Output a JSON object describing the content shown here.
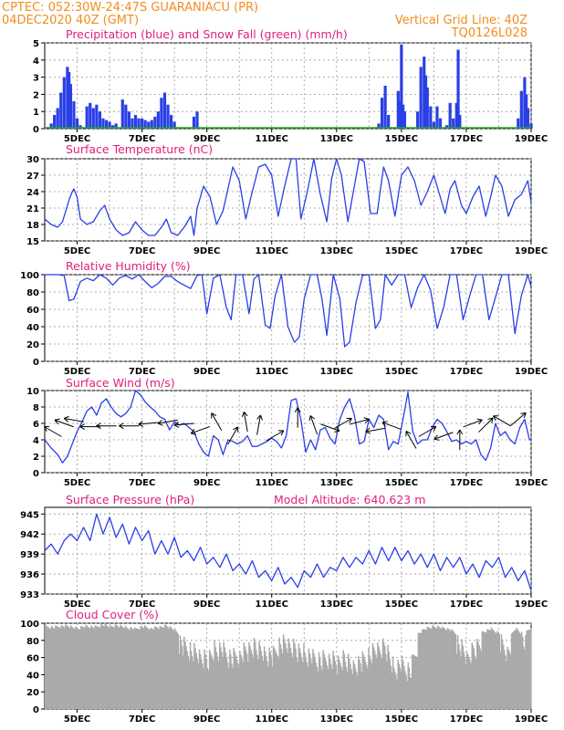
{
  "header": {
    "left_line1": "CPTEC:   052:30W-24:47S   GUARANIACU (PR)",
    "left_line2": "04DEC2020 40Z (GMT)",
    "right_line1": "Vertical Grid Line: 40Z",
    "right_line2": "TQ0126L028"
  },
  "colors": {
    "header": "#f28c1e",
    "panel_title": "#e0207a",
    "line": "#2a3fe6",
    "snow": "#22aa22",
    "cloud": "#aaaaaa"
  },
  "x_labels": [
    "5DEC",
    "7DEC",
    "9DEC",
    "11DEC",
    "13DEC",
    "15DEC",
    "17DEC",
    "19DEC"
  ],
  "chart_data": [
    {
      "type": "bar",
      "title": "Precipitation (blue) and Snow Fall (green) (mm/h)",
      "x_range_days": [
        4.0,
        19.0
      ],
      "ylim": [
        0,
        5
      ],
      "yticks": [
        0,
        1,
        2,
        3,
        4,
        5
      ],
      "series": [
        {
          "name": "Precipitation",
          "x": [
            4.2,
            4.3,
            4.4,
            4.5,
            4.6,
            4.7,
            4.75,
            4.8,
            4.9,
            5.0,
            5.1,
            5.3,
            5.4,
            5.5,
            5.6,
            5.7,
            5.8,
            5.9,
            6.0,
            6.1,
            6.2,
            6.4,
            6.5,
            6.6,
            6.7,
            6.8,
            6.9,
            7.0,
            7.1,
            7.2,
            7.3,
            7.4,
            7.5,
            7.6,
            7.7,
            7.8,
            7.9,
            8.0,
            8.6,
            8.7,
            14.3,
            14.4,
            14.5,
            14.6,
            14.9,
            14.95,
            15.0,
            15.05,
            15.1,
            15.5,
            15.6,
            15.7,
            15.75,
            15.8,
            15.9,
            16.0,
            16.1,
            16.2,
            16.4,
            16.5,
            16.6,
            16.7,
            16.75,
            16.8,
            18.6,
            18.7,
            18.8,
            18.85,
            18.9,
            19.0
          ],
          "values": [
            0.3,
            0.8,
            1.2,
            2.1,
            3.0,
            3.6,
            3.3,
            2.6,
            1.6,
            0.6,
            0.2,
            1.3,
            1.5,
            1.2,
            1.4,
            1.0,
            0.6,
            0.5,
            0.4,
            0.2,
            0.3,
            1.7,
            1.4,
            1.0,
            0.6,
            0.8,
            0.6,
            0.6,
            0.5,
            0.4,
            0.5,
            0.7,
            1.0,
            1.8,
            2.1,
            1.4,
            0.8,
            0.4,
            0.7,
            1.0,
            0.3,
            1.8,
            2.5,
            0.8,
            2.2,
            1.6,
            4.9,
            1.4,
            1.0,
            1.0,
            3.6,
            4.2,
            3.1,
            2.4,
            1.3,
            0.4,
            1.3,
            0.6,
            0.2,
            1.5,
            0.6,
            1.5,
            4.6,
            0.8,
            0.6,
            2.2,
            3.0,
            2.0,
            1.2,
            0.3
          ]
        },
        {
          "name": "Snow Fall",
          "x": [
            4.0,
            19.0
          ],
          "values": [
            0,
            0
          ]
        }
      ]
    },
    {
      "type": "line",
      "title": "Surface Temperature (nC)",
      "x_range_days": [
        4.0,
        19.0
      ],
      "ylim": [
        15,
        30
      ],
      "yticks": [
        15,
        18,
        21,
        24,
        27,
        30
      ],
      "x": [
        4.0,
        4.2,
        4.4,
        4.55,
        4.75,
        4.85,
        4.9,
        5.0,
        5.1,
        5.3,
        5.5,
        5.7,
        5.85,
        6.0,
        6.2,
        6.4,
        6.6,
        6.8,
        7.0,
        7.2,
        7.4,
        7.6,
        7.75,
        7.9,
        8.1,
        8.3,
        8.5,
        8.6,
        8.7,
        8.9,
        9.1,
        9.3,
        9.5,
        9.8,
        10.0,
        10.2,
        10.4,
        10.6,
        10.8,
        11.0,
        11.2,
        11.4,
        11.6,
        11.75,
        11.9,
        12.1,
        12.3,
        12.5,
        12.7,
        12.85,
        13.0,
        13.15,
        13.35,
        13.55,
        13.7,
        13.85,
        14.05,
        14.25,
        14.45,
        14.6,
        14.8,
        15.0,
        15.2,
        15.4,
        15.6,
        15.8,
        16.0,
        16.15,
        16.35,
        16.5,
        16.65,
        16.85,
        17.0,
        17.2,
        17.4,
        17.6,
        17.75,
        17.9,
        18.1,
        18.3,
        18.5,
        18.7,
        18.9,
        19.0
      ],
      "values": [
        19.0,
        18.0,
        17.5,
        18.5,
        22.5,
        24.0,
        24.5,
        23.0,
        19.0,
        18.0,
        18.5,
        20.5,
        21.5,
        19.0,
        17.0,
        16.0,
        16.5,
        18.5,
        17.0,
        16.0,
        16.0,
        17.5,
        19.0,
        16.5,
        16.0,
        17.5,
        19.5,
        16.0,
        21.0,
        25.0,
        23.0,
        18.0,
        20.5,
        28.5,
        26.0,
        19.0,
        24.0,
        28.5,
        29.0,
        27.0,
        19.5,
        25.0,
        30.0,
        30.0,
        19.0,
        24.0,
        30.0,
        23.5,
        18.5,
        26.5,
        30.0,
        27.0,
        18.5,
        25.0,
        30.0,
        29.5,
        20.0,
        20.0,
        28.5,
        26.0,
        19.5,
        27.0,
        28.5,
        26.0,
        21.5,
        24.0,
        27.0,
        24.0,
        20.0,
        24.5,
        26.0,
        21.5,
        20.0,
        23.0,
        25.0,
        19.5,
        23.0,
        27.0,
        25.0,
        19.5,
        22.5,
        23.5,
        26.0,
        22.0
      ]
    },
    {
      "type": "line",
      "title": "Relative Humidity (%)",
      "x_range_days": [
        4.0,
        19.0
      ],
      "ylim": [
        0,
        100
      ],
      "yticks": [
        0,
        20,
        40,
        60,
        80,
        100
      ],
      "x": [
        4.0,
        4.2,
        4.4,
        4.6,
        4.75,
        4.9,
        5.1,
        5.3,
        5.5,
        5.7,
        5.9,
        6.1,
        6.3,
        6.5,
        6.7,
        6.9,
        7.1,
        7.3,
        7.5,
        7.7,
        7.9,
        8.1,
        8.3,
        8.5,
        8.7,
        8.85,
        9.0,
        9.2,
        9.4,
        9.6,
        9.75,
        9.9,
        10.1,
        10.3,
        10.45,
        10.6,
        10.8,
        10.95,
        11.1,
        11.3,
        11.5,
        11.7,
        11.85,
        12.0,
        12.2,
        12.4,
        12.55,
        12.7,
        12.9,
        13.1,
        13.25,
        13.4,
        13.6,
        13.8,
        14.0,
        14.2,
        14.35,
        14.5,
        14.7,
        14.9,
        15.1,
        15.3,
        15.5,
        15.7,
        15.9,
        16.1,
        16.3,
        16.5,
        16.7,
        16.9,
        17.1,
        17.3,
        17.5,
        17.7,
        17.9,
        18.1,
        18.3,
        18.5,
        18.7,
        18.9,
        19.0
      ],
      "values": [
        100,
        100,
        100,
        99,
        70,
        72,
        92,
        96,
        93,
        100,
        96,
        88,
        96,
        99,
        95,
        100,
        92,
        85,
        90,
        98,
        98,
        92,
        88,
        84,
        99,
        100,
        55,
        96,
        100,
        62,
        48,
        100,
        100,
        55,
        95,
        100,
        42,
        38,
        75,
        100,
        40,
        22,
        28,
        72,
        100,
        100,
        72,
        30,
        100,
        72,
        17,
        22,
        68,
        99,
        100,
        38,
        48,
        100,
        88,
        100,
        100,
        62,
        85,
        100,
        82,
        38,
        62,
        100,
        100,
        48,
        75,
        100,
        100,
        48,
        74,
        100,
        100,
        32,
        76,
        100,
        86
      ]
    },
    {
      "type": "line",
      "title": "Surface Wind (m/s)",
      "x_range_days": [
        4.0,
        19.0
      ],
      "ylim": [
        0,
        10
      ],
      "yticks": [
        0,
        2,
        4,
        6,
        8,
        10
      ],
      "x": [
        4.0,
        4.2,
        4.4,
        4.55,
        4.7,
        4.85,
        5.0,
        5.15,
        5.3,
        5.45,
        5.6,
        5.75,
        5.9,
        6.05,
        6.2,
        6.35,
        6.5,
        6.65,
        6.8,
        6.95,
        7.1,
        7.25,
        7.4,
        7.55,
        7.7,
        7.85,
        8.0,
        8.15,
        8.3,
        8.45,
        8.6,
        8.75,
        8.9,
        9.05,
        9.2,
        9.35,
        9.5,
        9.65,
        9.8,
        9.95,
        10.1,
        10.25,
        10.4,
        10.55,
        10.7,
        10.85,
        11.0,
        11.15,
        11.3,
        11.45,
        11.6,
        11.75,
        11.9,
        12.05,
        12.2,
        12.35,
        12.5,
        12.65,
        12.8,
        12.95,
        13.1,
        13.25,
        13.4,
        13.55,
        13.7,
        13.85,
        14.0,
        14.15,
        14.3,
        14.45,
        14.6,
        14.75,
        14.9,
        15.05,
        15.2,
        15.35,
        15.5,
        15.65,
        15.8,
        15.95,
        16.1,
        16.25,
        16.4,
        16.55,
        16.7,
        16.85,
        17.0,
        17.15,
        17.3,
        17.45,
        17.6,
        17.75,
        17.9,
        18.05,
        18.2,
        18.35,
        18.5,
        18.65,
        18.8,
        18.95,
        19.0
      ],
      "values": [
        4.0,
        3.0,
        2.2,
        1.2,
        2.0,
        3.5,
        5.0,
        6.2,
        7.5,
        8.0,
        7.0,
        8.5,
        9.0,
        8.0,
        7.2,
        6.8,
        7.2,
        8.0,
        10.0,
        9.5,
        8.6,
        8.0,
        7.5,
        6.8,
        6.5,
        5.2,
        6.2,
        5.8,
        6.0,
        5.5,
        5.0,
        3.5,
        2.5,
        2.0,
        4.5,
        4.0,
        2.2,
        4.0,
        3.8,
        3.5,
        3.8,
        4.5,
        3.2,
        3.2,
        3.5,
        3.8,
        4.2,
        3.8,
        3.0,
        4.5,
        8.8,
        9.0,
        6.5,
        2.5,
        4.0,
        2.8,
        5.2,
        5.5,
        4.2,
        3.5,
        6.5,
        8.0,
        9.0,
        7.0,
        3.5,
        3.8,
        6.5,
        5.5,
        7.0,
        6.5,
        2.8,
        3.8,
        3.5,
        6.5,
        9.8,
        5.0,
        3.5,
        4.0,
        4.0,
        5.5,
        6.5,
        6.0,
        5.0,
        3.8,
        4.0,
        3.5,
        3.8,
        3.5,
        4.0,
        2.2,
        1.5,
        3.0,
        6.0,
        4.5,
        5.0,
        4.0,
        3.5,
        5.5,
        6.5,
        4.0,
        4.0
      ]
    },
    {
      "type": "line",
      "title": "Surface Pressure (hPa)",
      "annotation": "Model Altitude: 640.623 m",
      "x_range_days": [
        4.0,
        19.0
      ],
      "ylim": [
        933,
        946
      ],
      "yticks": [
        933,
        936,
        939,
        942,
        945
      ],
      "x": [
        4.0,
        4.2,
        4.4,
        4.6,
        4.8,
        5.0,
        5.2,
        5.4,
        5.6,
        5.8,
        6.0,
        6.2,
        6.4,
        6.6,
        6.8,
        7.0,
        7.2,
        7.4,
        7.6,
        7.8,
        8.0,
        8.2,
        8.4,
        8.6,
        8.8,
        9.0,
        9.2,
        9.4,
        9.6,
        9.8,
        10.0,
        10.2,
        10.4,
        10.6,
        10.8,
        11.0,
        11.2,
        11.4,
        11.6,
        11.8,
        12.0,
        12.2,
        12.4,
        12.6,
        12.8,
        13.0,
        13.2,
        13.4,
        13.6,
        13.8,
        14.0,
        14.2,
        14.4,
        14.6,
        14.8,
        15.0,
        15.2,
        15.4,
        15.6,
        15.8,
        16.0,
        16.2,
        16.4,
        16.6,
        16.8,
        17.0,
        17.2,
        17.4,
        17.6,
        17.8,
        18.0,
        18.2,
        18.4,
        18.6,
        18.8,
        19.0
      ],
      "values": [
        939.5,
        940.5,
        939.0,
        941.0,
        942.0,
        941.0,
        943.0,
        941.0,
        945.0,
        942.0,
        944.5,
        941.5,
        943.5,
        940.5,
        943.0,
        941.0,
        942.5,
        939.0,
        941.0,
        939.0,
        941.5,
        938.5,
        939.5,
        938.0,
        940.0,
        937.5,
        938.5,
        937.0,
        939.0,
        936.5,
        937.5,
        936.0,
        938.0,
        935.5,
        936.5,
        935.0,
        937.0,
        934.5,
        935.5,
        934.0,
        936.5,
        935.5,
        937.5,
        935.5,
        937.0,
        936.5,
        938.5,
        937.0,
        938.5,
        937.5,
        939.5,
        937.5,
        940.0,
        938.0,
        940.0,
        938.0,
        939.5,
        937.5,
        939.0,
        937.0,
        939.0,
        936.5,
        938.5,
        937.0,
        938.5,
        936.0,
        937.5,
        935.5,
        938.0,
        937.0,
        938.5,
        935.5,
        937.0,
        935.0,
        936.5,
        933.5
      ]
    },
    {
      "type": "bar",
      "title": "Cloud Cover (%)",
      "x_range_days": [
        4.0,
        19.0
      ],
      "ylim": [
        0,
        100
      ],
      "yticks": [
        0,
        20,
        40,
        60,
        80,
        100
      ],
      "x": [
        4.0,
        4.25,
        4.5,
        4.75,
        5.0,
        5.25,
        5.5,
        5.75,
        6.0,
        6.25,
        6.5,
        6.75,
        7.0,
        7.25,
        7.5,
        7.75,
        8.0,
        8.25,
        8.5,
        8.75,
        9.0,
        9.25,
        9.5,
        9.75,
        10.0,
        10.25,
        10.5,
        10.75,
        11.0,
        11.25,
        11.5,
        11.75,
        12.0,
        12.25,
        12.5,
        12.75,
        13.0,
        13.25,
        13.5,
        13.75,
        14.0,
        14.25,
        14.5,
        14.75,
        15.0,
        15.25,
        15.5,
        15.75,
        16.0,
        16.25,
        16.5,
        16.75,
        17.0,
        17.25,
        17.5,
        17.75,
        18.0,
        18.25,
        18.5,
        18.75,
        19.0
      ],
      "values": [
        98,
        97,
        99,
        98,
        96,
        99,
        97,
        100,
        98,
        99,
        97,
        95,
        98,
        96,
        97,
        99,
        94,
        85,
        80,
        72,
        68,
        82,
        78,
        70,
        75,
        80,
        84,
        78,
        72,
        88,
        85,
        80,
        76,
        70,
        68,
        72,
        64,
        70,
        62,
        66,
        75,
        80,
        84,
        58,
        62,
        55,
        90,
        96,
        98,
        97,
        94,
        88,
        70,
        82,
        92,
        95,
        90,
        80,
        96,
        88,
        98
      ]
    }
  ]
}
